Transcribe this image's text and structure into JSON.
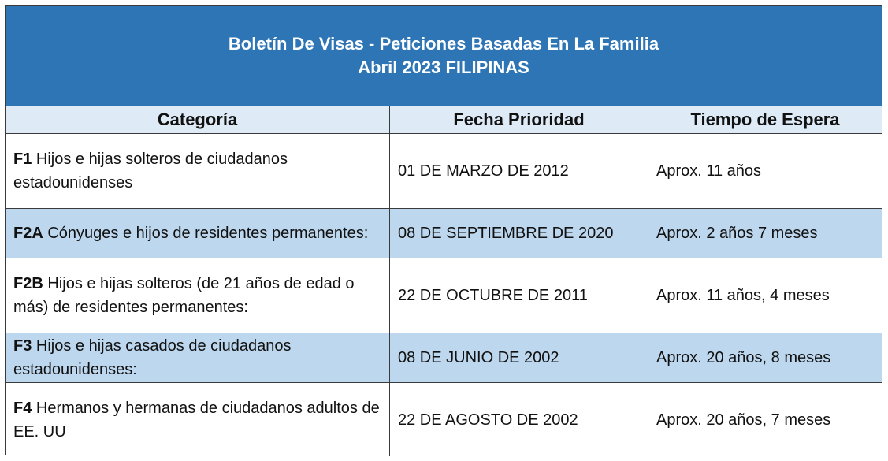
{
  "title": {
    "line1": "Boletín De Visas - Peticiones Basadas En La Familia",
    "line2": "Abril 2023 FILIPINAS"
  },
  "colors": {
    "title_bg": "#2e75b6",
    "header_bg": "#deebf7",
    "alt_row_bg": "#bdd7ee"
  },
  "headers": [
    "Categoría",
    "Fecha Prioridad",
    "Tiempo de Espera"
  ],
  "rows": [
    {
      "code": "F1",
      "desc": "Hijos e hijas solteros de ciudadanos estadounidenses",
      "date": "01 DE MARZO DE 2012",
      "wait": "Aprox. 11 años"
    },
    {
      "code": "F2A",
      "desc": "Cónyuges e hijos de residentes permanentes:",
      "date": "08 DE SEPTIEMBRE DE 2020",
      "wait": "Aprox. 2 años 7 meses"
    },
    {
      "code": "F2B",
      "desc": "Hijos e hijas solteros (de 21 años de edad o más) de residentes permanentes:",
      "date": "22 DE OCTUBRE DE 2011",
      "wait": "Aprox. 11 años, 4 meses"
    },
    {
      "code": "F3",
      "desc": "Hijos e hijas casados de ciudadanos estadounidenses:",
      "date": "08 DE JUNIO DE 2002",
      "wait": "Aprox. 20 años, 8 meses"
    },
    {
      "code": "F4",
      "desc": "Hermanos y hermanas de ciudadanos adultos de EE. UU",
      "date": "22 DE AGOSTO DE 2002",
      "wait": "Aprox. 20 años, 7 meses"
    }
  ]
}
